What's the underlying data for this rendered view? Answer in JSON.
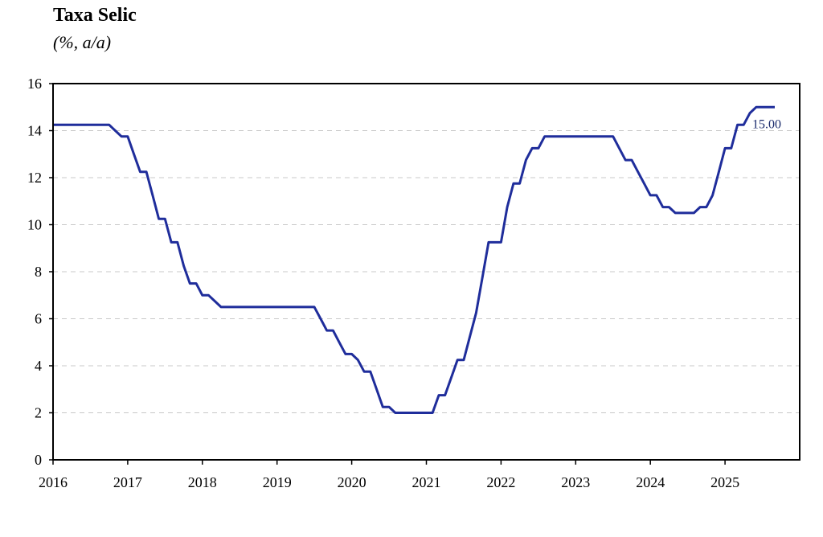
{
  "chart_data": {
    "type": "line",
    "title": "Taxa Selic",
    "subtitle": "(%, a/a)",
    "xlabel": "",
    "ylabel": "",
    "ylim": [
      0,
      16
    ],
    "yticks": [
      0,
      2,
      4,
      6,
      8,
      10,
      12,
      14,
      16
    ],
    "xlim": [
      "2016-01-01",
      "2026-01-01"
    ],
    "xticks": [
      "2016",
      "2017",
      "2018",
      "2019",
      "2020",
      "2021",
      "2022",
      "2023",
      "2024",
      "2025"
    ],
    "grid": "horizontal-dashed",
    "line_color": "#1f2d9b",
    "end_label": "15.00",
    "end_label_color": "#1a2a6c",
    "series": [
      {
        "points": [
          [
            "2016-01",
            14.25
          ],
          [
            "2016-10",
            14.25
          ],
          [
            "2016-11",
            14.0
          ],
          [
            "2016-12",
            13.75
          ],
          [
            "2017-01",
            13.75
          ],
          [
            "2017-02",
            13.0
          ],
          [
            "2017-03",
            12.25
          ],
          [
            "2017-04",
            12.25
          ],
          [
            "2017-05",
            11.25
          ],
          [
            "2017-06",
            10.25
          ],
          [
            "2017-07",
            10.25
          ],
          [
            "2017-08",
            9.25
          ],
          [
            "2017-09",
            9.25
          ],
          [
            "2017-10",
            8.25
          ],
          [
            "2017-11",
            7.5
          ],
          [
            "2017-12",
            7.5
          ],
          [
            "2018-01",
            7.0
          ],
          [
            "2018-02",
            7.0
          ],
          [
            "2018-03",
            6.75
          ],
          [
            "2018-04",
            6.5
          ],
          [
            "2019-07",
            6.5
          ],
          [
            "2019-08",
            6.0
          ],
          [
            "2019-09",
            5.5
          ],
          [
            "2019-10",
            5.5
          ],
          [
            "2019-11",
            5.0
          ],
          [
            "2019-12",
            4.5
          ],
          [
            "2020-01",
            4.5
          ],
          [
            "2020-02",
            4.25
          ],
          [
            "2020-03",
            3.75
          ],
          [
            "2020-04",
            3.75
          ],
          [
            "2020-05",
            3.0
          ],
          [
            "2020-06",
            2.25
          ],
          [
            "2020-07",
            2.25
          ],
          [
            "2020-08",
            2.0
          ],
          [
            "2021-02",
            2.0
          ],
          [
            "2021-03",
            2.75
          ],
          [
            "2021-04",
            2.75
          ],
          [
            "2021-05",
            3.5
          ],
          [
            "2021-06",
            4.25
          ],
          [
            "2021-07",
            4.25
          ],
          [
            "2021-08",
            5.25
          ],
          [
            "2021-09",
            6.25
          ],
          [
            "2021-10",
            7.75
          ],
          [
            "2021-11",
            9.25
          ],
          [
            "2021-12",
            9.25
          ],
          [
            "2022-01",
            9.25
          ],
          [
            "2022-02",
            10.75
          ],
          [
            "2022-03",
            11.75
          ],
          [
            "2022-04",
            11.75
          ],
          [
            "2022-05",
            12.75
          ],
          [
            "2022-06",
            13.25
          ],
          [
            "2022-07",
            13.25
          ],
          [
            "2022-08",
            13.75
          ],
          [
            "2023-07",
            13.75
          ],
          [
            "2023-08",
            13.25
          ],
          [
            "2023-09",
            12.75
          ],
          [
            "2023-10",
            12.75
          ],
          [
            "2023-11",
            12.25
          ],
          [
            "2023-12",
            11.75
          ],
          [
            "2024-01",
            11.25
          ],
          [
            "2024-02",
            11.25
          ],
          [
            "2024-03",
            10.75
          ],
          [
            "2024-04",
            10.75
          ],
          [
            "2024-05",
            10.5
          ],
          [
            "2024-08",
            10.5
          ],
          [
            "2024-09",
            10.75
          ],
          [
            "2024-10",
            10.75
          ],
          [
            "2024-11",
            11.25
          ],
          [
            "2024-12",
            12.25
          ],
          [
            "2025-01",
            13.25
          ],
          [
            "2025-02",
            13.25
          ],
          [
            "2025-03",
            14.25
          ],
          [
            "2025-04",
            14.25
          ],
          [
            "2025-05",
            14.75
          ],
          [
            "2025-06",
            15.0
          ],
          [
            "2025-09",
            15.0
          ]
        ]
      }
    ]
  }
}
